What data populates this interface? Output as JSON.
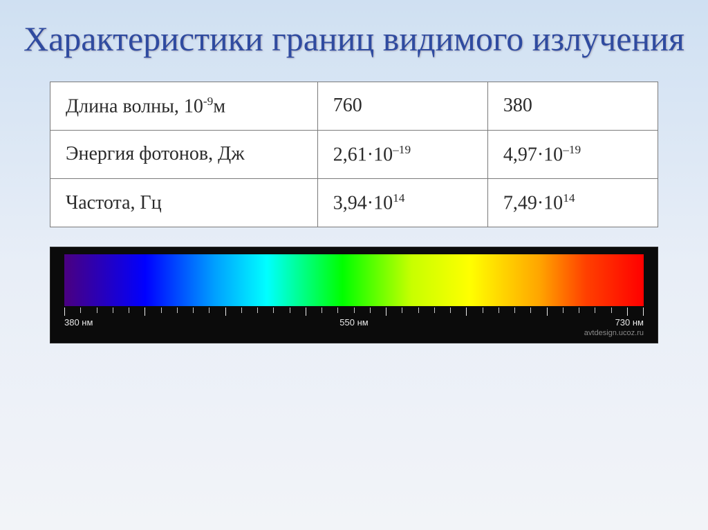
{
  "title": "Характеристики границ видимого излучения",
  "table": {
    "rows": [
      {
        "param_base": "Длина волны, 10",
        "param_exp": "-9",
        "param_tail": "м",
        "v1": "760",
        "v2": "380"
      },
      {
        "param_base": "Энергия фотонов, Дж",
        "param_exp": "",
        "param_tail": "",
        "v1_base": "2,61·10",
        "v1_exp": "–19",
        "v2_base": "4,97·10",
        "v2_exp": "–19"
      },
      {
        "param_base": "Частота, Гц",
        "param_exp": "",
        "param_tail": "",
        "v1_base": "3,94·10",
        "v1_exp": "14",
        "v2_base": "7,49·10",
        "v2_exp": "14"
      }
    ],
    "border_color": "#7a7a7a",
    "bg_color": "#ffffff",
    "cell_fontsize_pt": 21,
    "text_color": "#2b2b2b"
  },
  "title_style": {
    "color": "#2f4ba0",
    "fontsize_pt": 38
  },
  "background_gradient": [
    "#cfe0f2",
    "#e8eef7",
    "#f2f4f8"
  ],
  "spectrum": {
    "type": "spectrum-bar",
    "gradient_stops": [
      {
        "pct": 0,
        "hex": "#4a0080"
      },
      {
        "pct": 14,
        "hex": "#0000ff"
      },
      {
        "pct": 26,
        "hex": "#00a0ff"
      },
      {
        "pct": 35,
        "hex": "#00ffff"
      },
      {
        "pct": 48,
        "hex": "#00ff00"
      },
      {
        "pct": 60,
        "hex": "#c8ff00"
      },
      {
        "pct": 70,
        "hex": "#ffff00"
      },
      {
        "pct": 82,
        "hex": "#ffa500"
      },
      {
        "pct": 90,
        "hex": "#ff4000"
      },
      {
        "pct": 100,
        "hex": "#ff0000"
      }
    ],
    "tick_start_nm": 380,
    "tick_end_nm": 730,
    "tick_step_nm": 10,
    "major_step_nm": 50,
    "labels_nm": [
      "380 нм",
      "550 нм",
      "730 нм"
    ],
    "bar_bg": "#0b0b0b",
    "tick_color": "#c9c9c9",
    "major_tick_color": "#ededed",
    "label_color": "#e8e8e8",
    "label_fontsize_pt": 10,
    "watermark": "avtdesign.ucoz.ru"
  }
}
